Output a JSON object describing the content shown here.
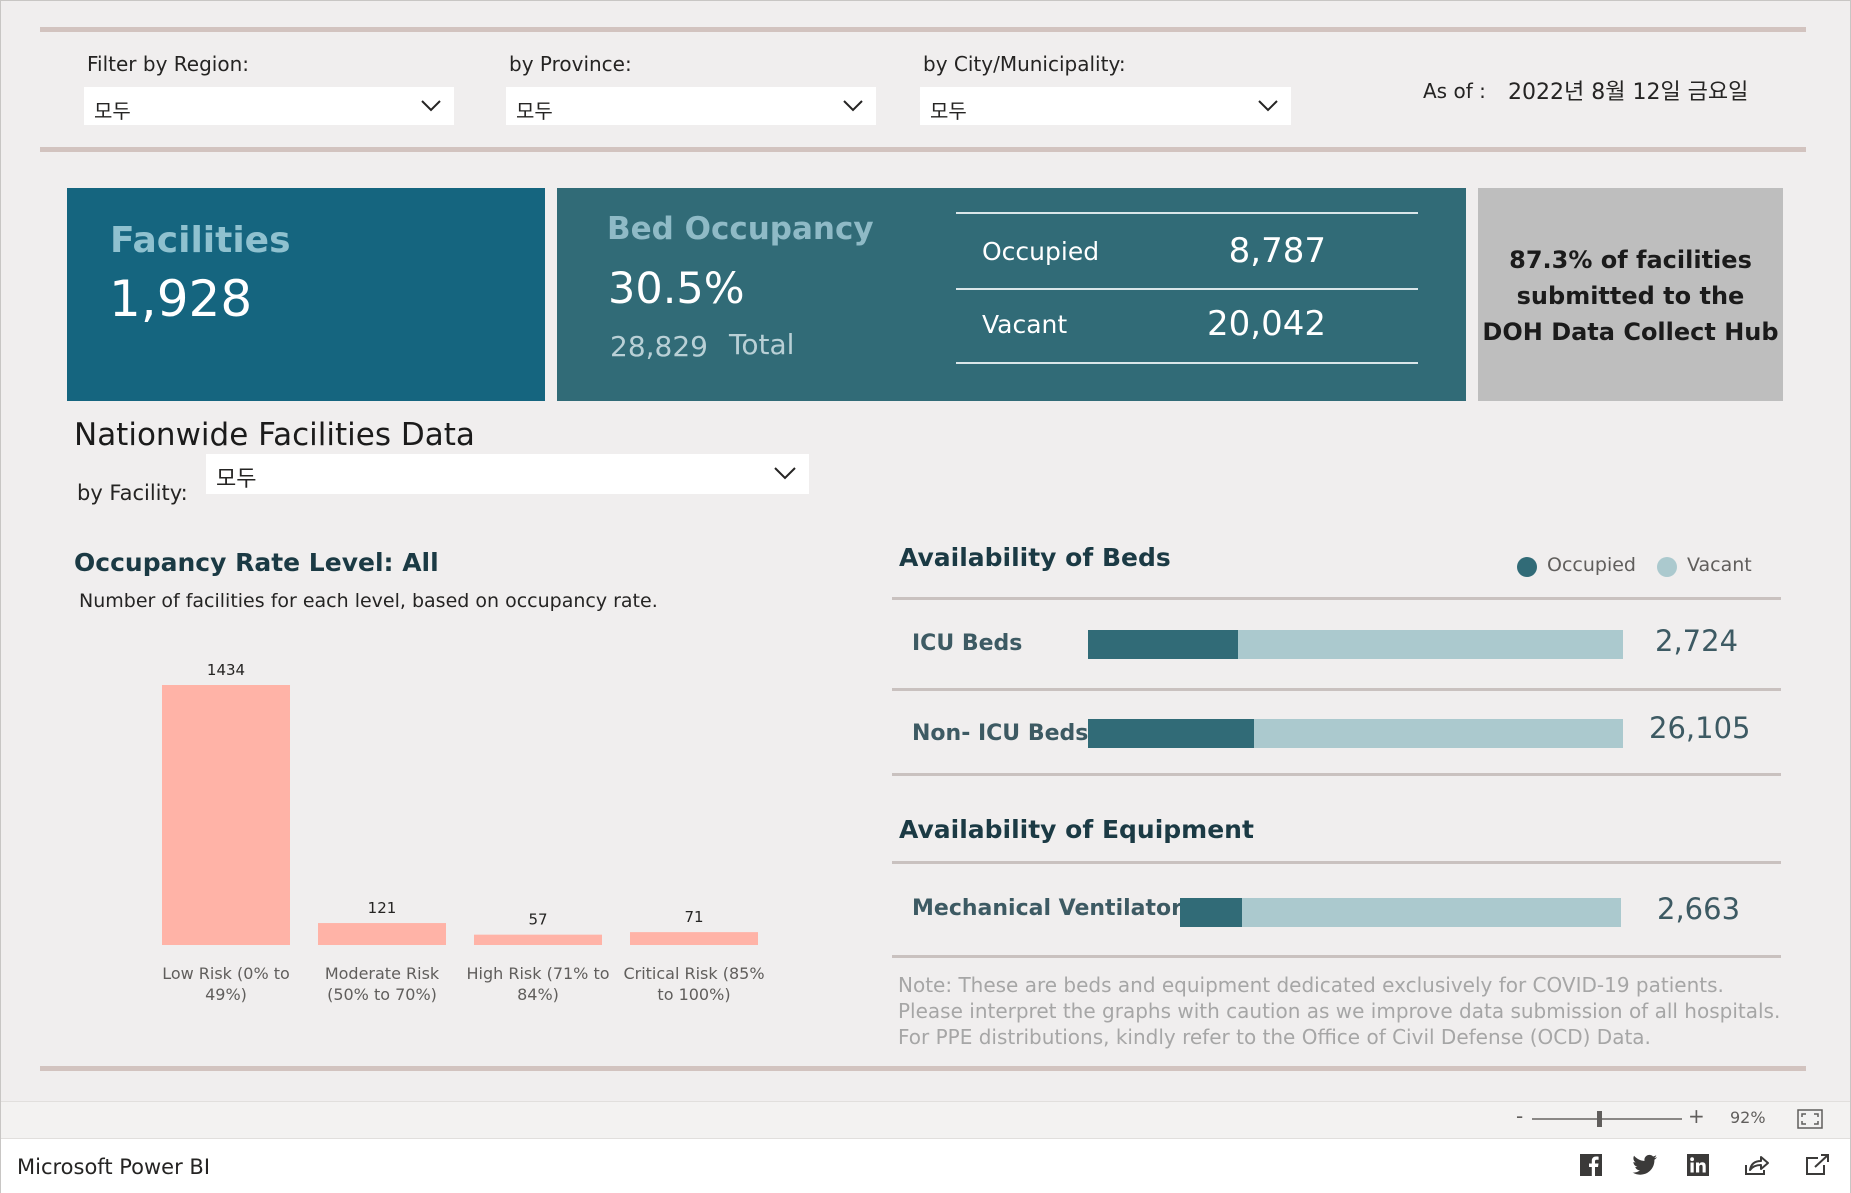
{
  "filters": {
    "region_label": "Filter by Region:",
    "region_value": "모두",
    "province_label": "by Province:",
    "province_value": "모두",
    "city_label": "by City/Municipality:",
    "city_value": "모두",
    "as_of_label": "As of :",
    "as_of_value": "2022년 8월 12일 금요일"
  },
  "kpi": {
    "facilities_title": "Facilities",
    "facilities_value": "1,928",
    "bed_title": "Bed Occupancy",
    "bed_pct": "30.5%",
    "bed_total_value": "28,829",
    "bed_total_label": "Total",
    "occupied_label": "Occupied",
    "occupied_value": "8,787",
    "vacant_label": "Vacant",
    "vacant_value": "20,042",
    "submitted_line1": "87.3% of facilities",
    "submitted_line2": "submitted to the",
    "submitted_line3": "DOH Data Collect Hub"
  },
  "nationwide": {
    "title": "Nationwide Facilities Data",
    "facility_label": "by Facility:",
    "facility_value": "모두"
  },
  "occupancy": {
    "title": "Occupancy Rate Level: All",
    "subtitle": "Number of facilities for each level, based on occupancy rate."
  },
  "chart_data": {
    "type": "bar",
    "title": "Occupancy Rate Level: All",
    "categories": [
      [
        "Low Risk (0% to",
        "49%)"
      ],
      [
        "Moderate Risk",
        "(50% to 70%)"
      ],
      [
        "High Risk (71% to",
        "84%)"
      ],
      [
        "Critical Risk (85%",
        "to 100%)"
      ]
    ],
    "values": [
      1434,
      121,
      57,
      71
    ],
    "ylim": [
      0,
      1434
    ],
    "color": "#ffb3a7",
    "grid": false
  },
  "beds": {
    "title": "Availability of Beds",
    "legend_occupied": "Occupied",
    "legend_vacant": "Vacant",
    "occupied_color": "#316b77",
    "vacant_color": "#abc9ce",
    "rows": [
      {
        "label": "ICU Beds",
        "total": "2,724",
        "occupied_fraction": 0.28
      },
      {
        "label": "Non- ICU Beds",
        "total": "26,105",
        "occupied_fraction": 0.31
      }
    ]
  },
  "equipment": {
    "title": "Availability of Equipment",
    "rows": [
      {
        "label": "Mechanical Ventilators",
        "total": "2,663",
        "occupied_fraction": 0.14
      }
    ]
  },
  "note": "Note: These are beds and equipment dedicated exclusively for COVID-19 patients. Please interpret the graphs with caution as we improve data submission of all hospitals. For PPE distributions, kindly refer to the Office of Civil Defense (OCD) Data.",
  "status": {
    "zoom_minus": "-",
    "zoom_plus": "+",
    "zoom_pct": "92%",
    "zoom_level": 0.5
  },
  "footer": {
    "brand": "Microsoft Power BI",
    "icons": [
      "facebook-icon",
      "twitter-icon",
      "linkedin-icon",
      "share-icon",
      "open-external-icon"
    ]
  }
}
